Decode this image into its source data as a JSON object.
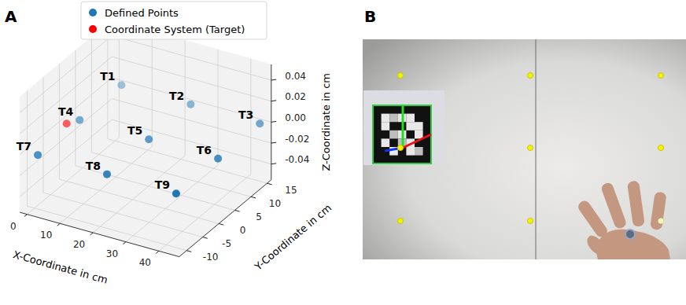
{
  "panel_labels": [
    "A",
    "B"
  ],
  "chart_data": {
    "type": "scatter",
    "x_label": "X-Coordinate in cm",
    "y_label": "Y-Coordinate in cm",
    "z_label": "Z-Coordinate in cm",
    "xlim": [
      -2.2,
      46.2
    ],
    "ylim": [
      -12.3,
      16.3
    ],
    "zlim": [
      -0.055,
      0.055
    ],
    "xticks": [
      0,
      10,
      20,
      30,
      40
    ],
    "yticks": [
      -10,
      -5,
      0,
      5,
      10,
      15
    ],
    "zticks": [
      -0.04,
      -0.02,
      {
        "value": 0,
        "label": "0.00"
      },
      0.02,
      0.04
    ],
    "grid": true,
    "legend": "top",
    "series": [
      {
        "name": "Defined Points",
        "color": "#1f77b4",
        "marker": "circle",
        "x": [
          2,
          23,
          44,
          2,
          23,
          44,
          2,
          23,
          44
        ],
        "y": [
          15,
          15,
          15,
          2,
          2,
          2,
          -11,
          -11,
          -11
        ],
        "z": [
          0,
          0,
          0,
          0,
          0,
          0,
          0,
          0,
          0
        ],
        "labels": [
          "T1",
          "T2",
          "T3",
          "T4",
          "T5",
          "T6",
          "T7",
          "T8",
          "T9"
        ]
      },
      {
        "name": "Coordinate System (Target)",
        "color": "#ff0000",
        "marker": "circle",
        "x": [
          0
        ],
        "y": [
          0
        ],
        "z": [
          0
        ]
      }
    ]
  }
}
